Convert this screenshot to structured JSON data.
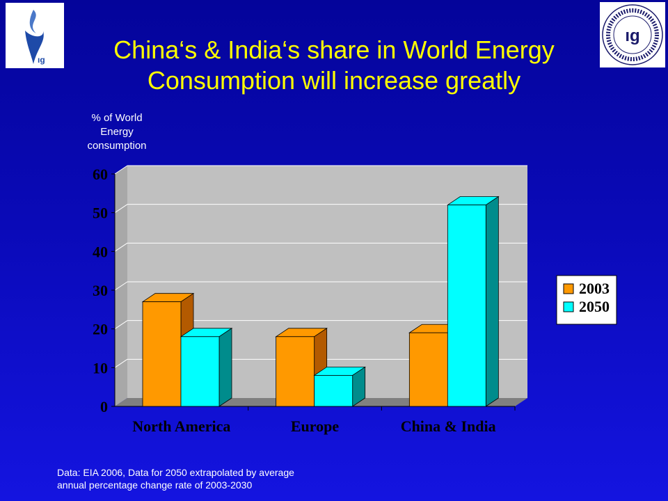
{
  "slide": {
    "title_line1": "China‘s & India‘s share in World Energy",
    "title_line2": "Consumption will increase greatly",
    "ylabel_lines": [
      "% of World",
      "Energy",
      "consumption"
    ],
    "footnote_lines": [
      "Data: EIA 2006, Data for 2050 extrapolated by average",
      "annual percentage change rate of 2003-2030"
    ],
    "logo_left": "igu-flame-logo",
    "logo_right_text": "INTERNATIONAL GAS UNION · UNION INTERNATIONALE DE L'INDUSTRIE DU GAZ"
  },
  "chart_data": {
    "type": "bar",
    "categories": [
      "North America",
      "Europe",
      "China & India"
    ],
    "series": [
      {
        "name": "2003",
        "values": [
          27,
          18,
          19
        ],
        "color": "#ff9900",
        "side_color": "#b35a00"
      },
      {
        "name": "2050",
        "values": [
          18,
          8,
          52
        ],
        "color": "#00ffff",
        "side_color": "#008c8c"
      }
    ],
    "ylim": [
      0,
      60
    ],
    "yticks": [
      "0",
      "10",
      "20",
      "30",
      "40",
      "50",
      "60"
    ],
    "grid": true,
    "legend_position": "right",
    "colors": {
      "plot_bg": "#c0c0c0",
      "floor": "#808080",
      "grid": "#ffffff"
    }
  }
}
